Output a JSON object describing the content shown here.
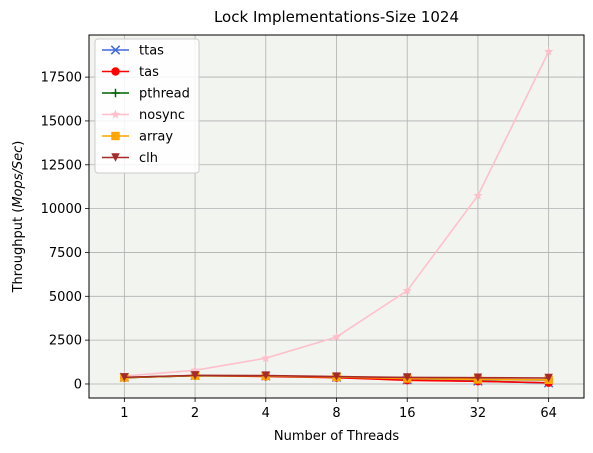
{
  "chart_data": {
    "type": "line",
    "title": "Lock Implementations-Size 1024",
    "xlabel": "Number of Threads",
    "ylabel_prefix": "Throughput (",
    "ylabel_italic": "Mops/Sec",
    "ylabel_suffix": ")",
    "x_scale": "log2",
    "categories": [
      "1",
      "2",
      "4",
      "8",
      "16",
      "32",
      "64"
    ],
    "x": [
      1,
      2,
      4,
      8,
      16,
      32,
      64
    ],
    "ylim": [
      -800,
      19900
    ],
    "yticks": [
      0,
      2500,
      5000,
      7500,
      10000,
      12500,
      15000,
      17500
    ],
    "grid": true,
    "legend_position": "top-left",
    "plot_background": "#f2f4ef",
    "series": [
      {
        "name": "ttas",
        "color": "#4169e1",
        "marker": "x",
        "values": [
          380,
          480,
          450,
          380,
          230,
          160,
          60
        ]
      },
      {
        "name": "tas",
        "color": "#ff0000",
        "marker": "o",
        "values": [
          360,
          470,
          430,
          360,
          210,
          150,
          70
        ]
      },
      {
        "name": "pthread",
        "color": "#006400",
        "marker": "+",
        "values": [
          360,
          470,
          460,
          400,
          320,
          250,
          230
        ]
      },
      {
        "name": "nosync",
        "color": "#ffc0cb",
        "marker": "*",
        "values": [
          450,
          780,
          1470,
          2680,
          5320,
          10740,
          18950
        ]
      },
      {
        "name": "array",
        "color": "#ffa500",
        "marker": "s",
        "values": [
          370,
          480,
          460,
          400,
          310,
          260,
          240
        ]
      },
      {
        "name": "clh",
        "color": "#a52a2a",
        "marker": "v",
        "values": [
          380,
          490,
          480,
          420,
          370,
          360,
          340
        ]
      }
    ]
  }
}
